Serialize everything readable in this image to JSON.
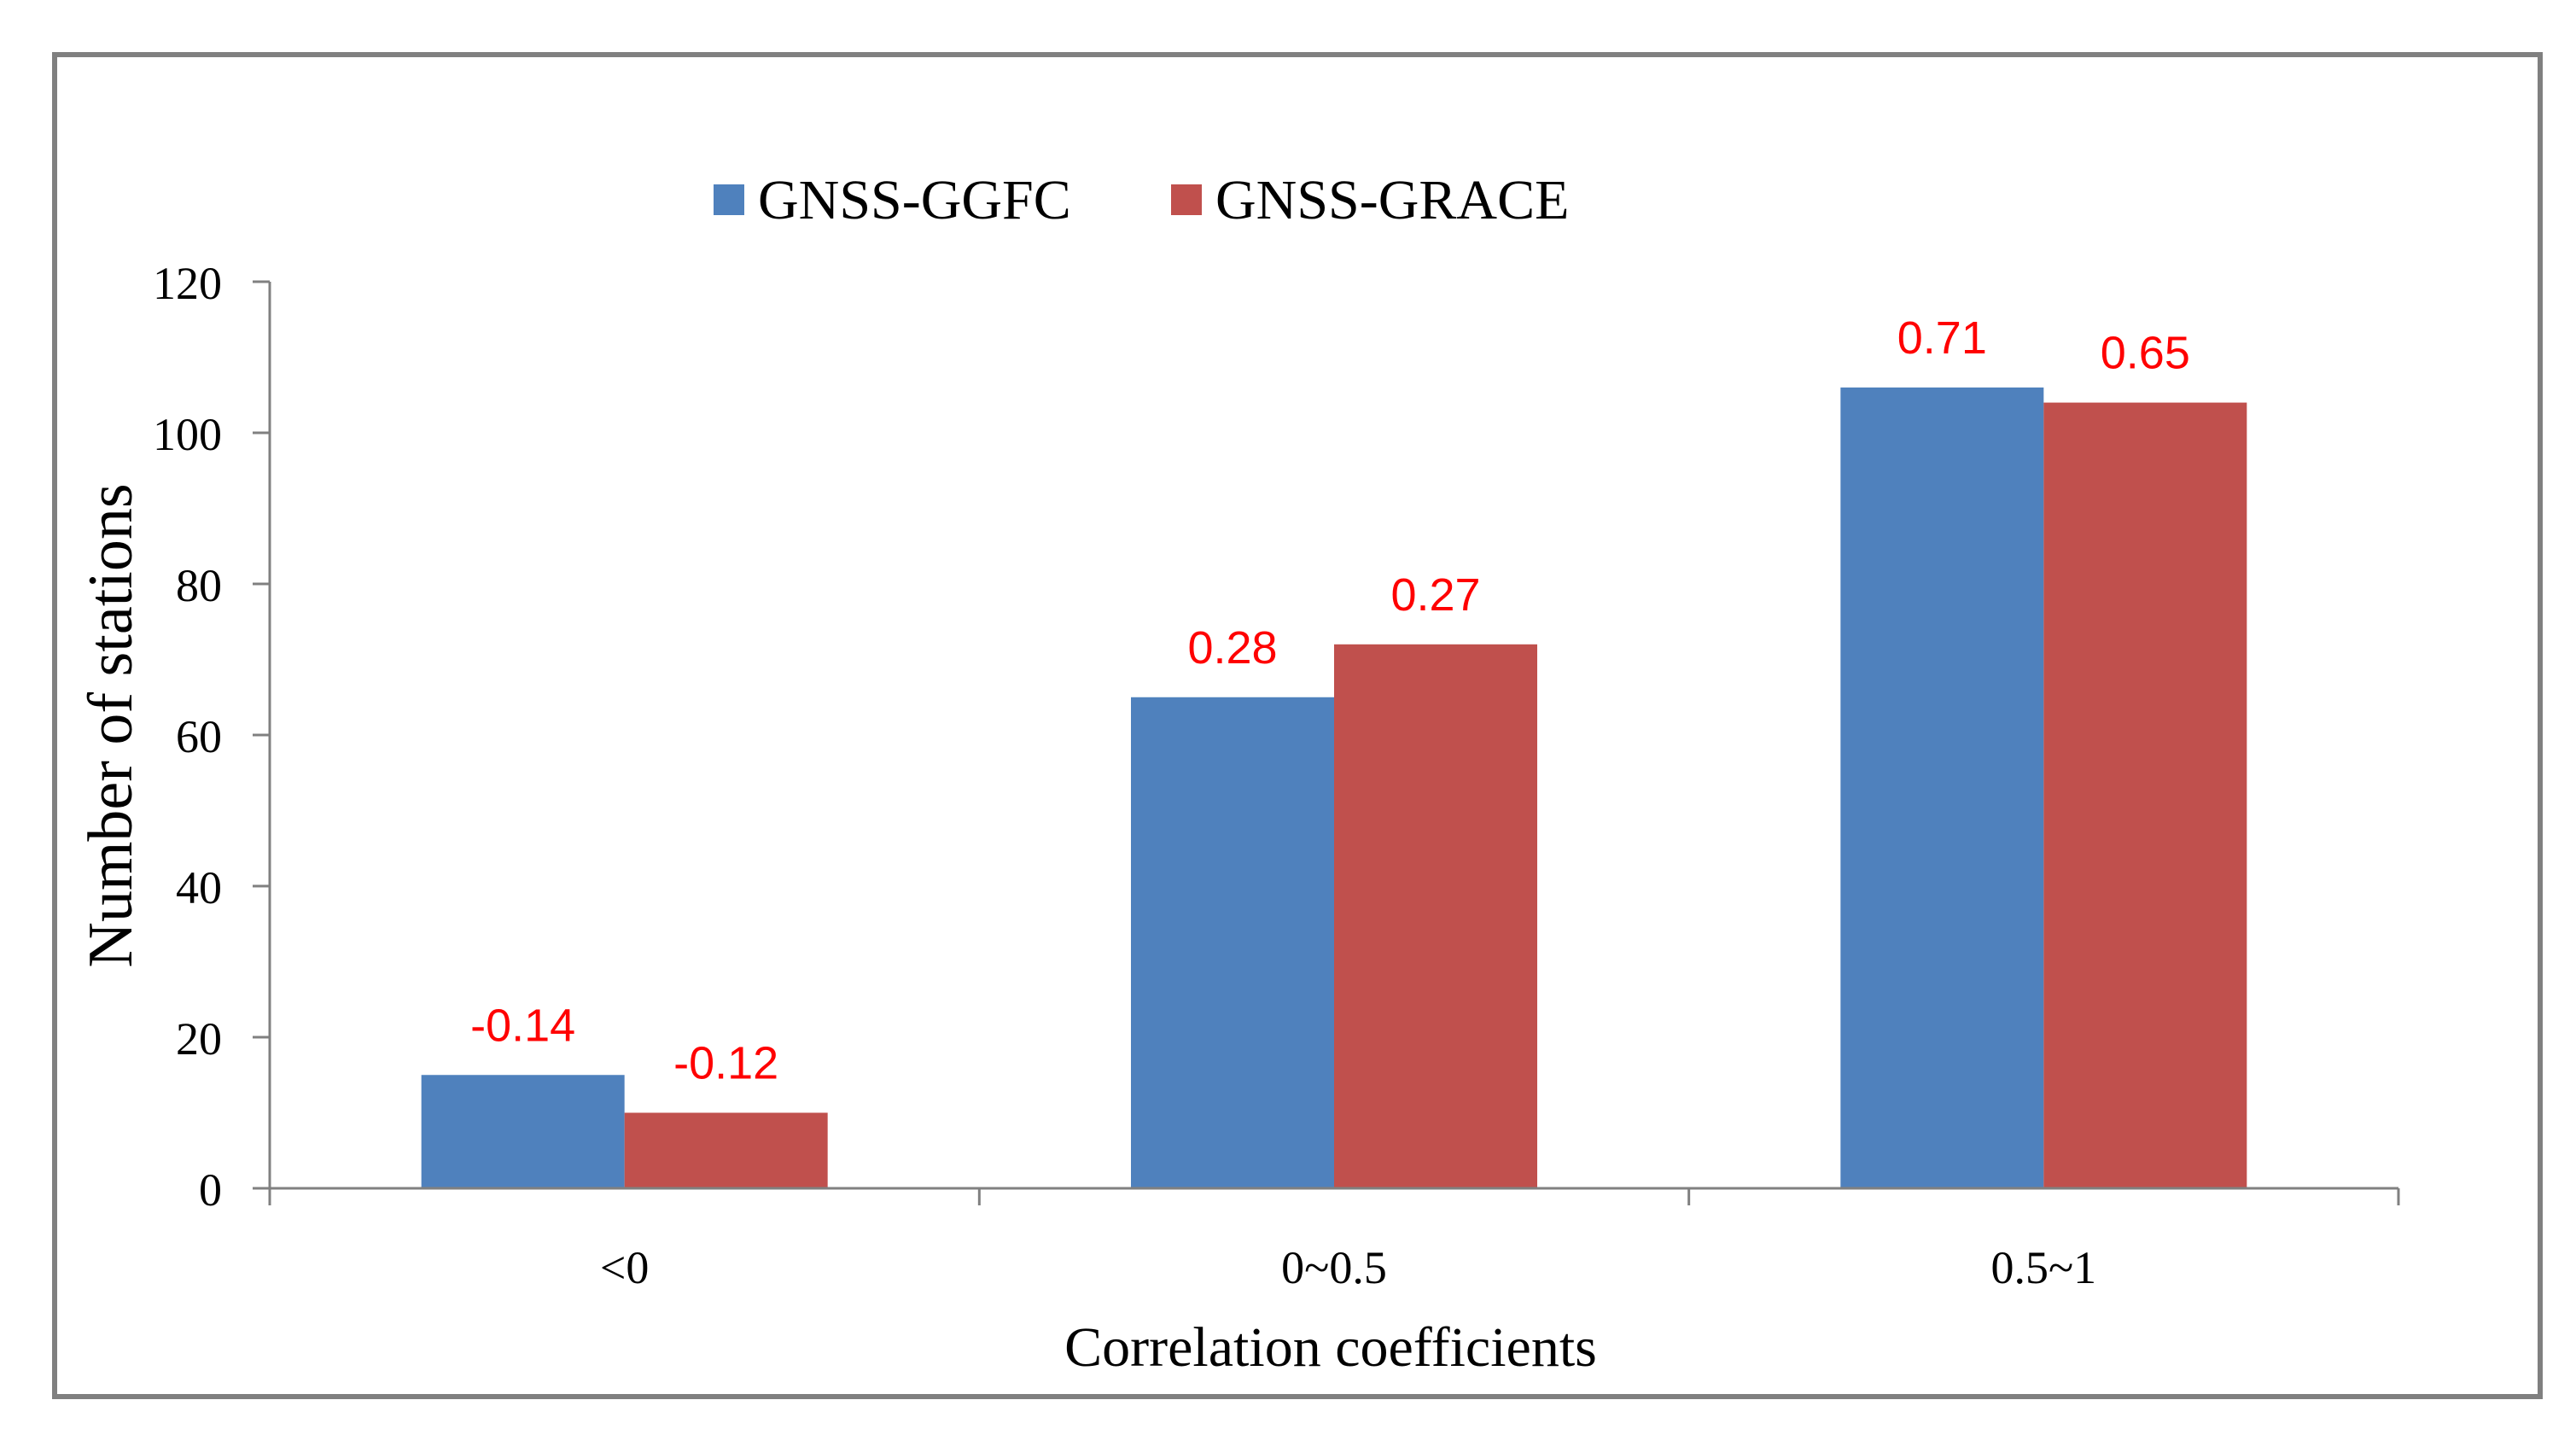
{
  "chart_data": {
    "type": "bar",
    "title": "",
    "xlabel": "Correlation coefficients",
    "ylabel": "Number of stations",
    "categories": [
      "<0",
      "0~0.5",
      "0.5~1"
    ],
    "ylim": [
      0,
      120
    ],
    "yticks": [
      0,
      20,
      40,
      60,
      80,
      100,
      120
    ],
    "grid": false,
    "legend_position": "top",
    "series": [
      {
        "name": "GNSS-GGFC",
        "color": "#4F81BD",
        "values": [
          15,
          65,
          106
        ],
        "data_labels": [
          "-0.14",
          "0.28",
          "0.71"
        ]
      },
      {
        "name": "GNSS-GRACE",
        "color": "#C0504D",
        "values": [
          10,
          72,
          104
        ],
        "data_labels": [
          "-0.12",
          "0.27",
          "0.65"
        ]
      }
    ],
    "data_label_color": "#FF0000"
  }
}
